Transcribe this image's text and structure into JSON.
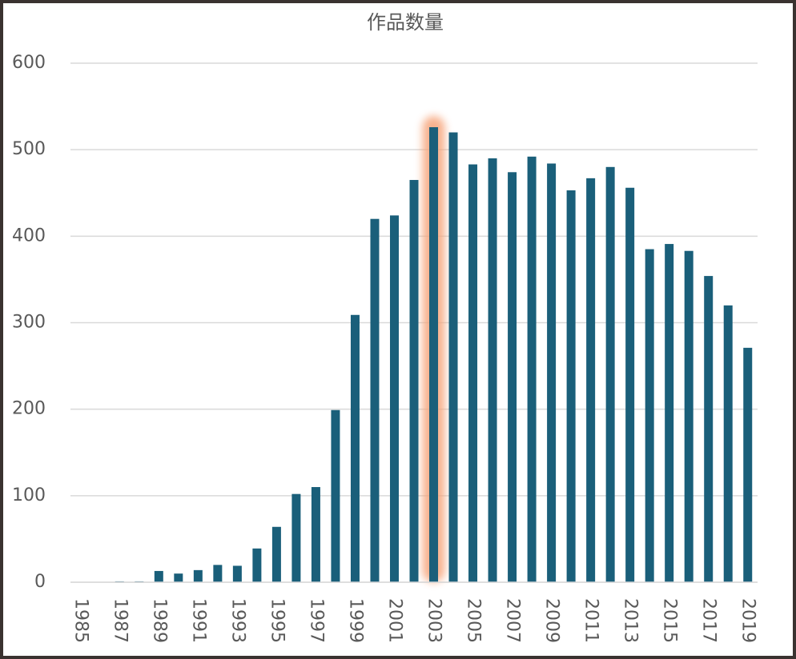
{
  "chart_data": {
    "type": "bar",
    "title": "作品数量",
    "categories": [
      "1985",
      null,
      "1987",
      null,
      "1989",
      null,
      "1991",
      null,
      "1993",
      null,
      "1995",
      null,
      "1997",
      null,
      "1999",
      null,
      "2001",
      null,
      "2003",
      null,
      "2005",
      null,
      "2007",
      null,
      "2009",
      null,
      "2011",
      null,
      "2013",
      null,
      "2015",
      null,
      "2017",
      null,
      "2019"
    ],
    "values": [
      0,
      0,
      1,
      1,
      13,
      10,
      14,
      20,
      19,
      39,
      64,
      102,
      110,
      199,
      309,
      420,
      424,
      465,
      526,
      520,
      483,
      490,
      474,
      492,
      484,
      453,
      467,
      480,
      456,
      385,
      391,
      383,
      354,
      320,
      271
    ],
    "color": "#1a5f7a",
    "ylim": [
      0,
      600
    ],
    "yticks": [
      0,
      100,
      200,
      300,
      400,
      500,
      600
    ],
    "grid": true,
    "highlight": {
      "index": 18,
      "color": "#f6a57c"
    }
  }
}
